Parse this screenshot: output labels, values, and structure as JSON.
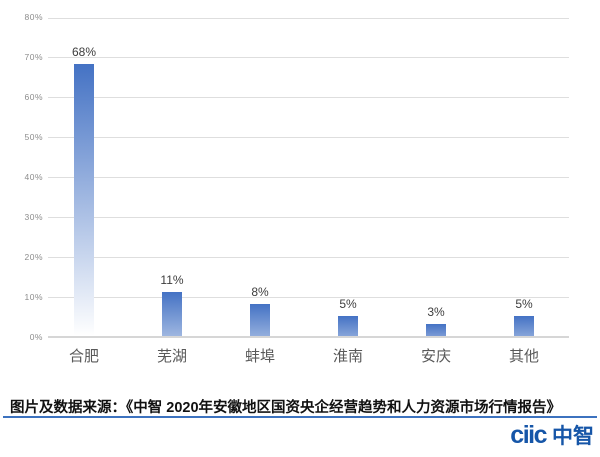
{
  "chart_data": {
    "type": "bar",
    "title": "",
    "xlabel": "",
    "ylabel": "",
    "categories": [
      "合肥",
      "芜湖",
      "蚌埠",
      "淮南",
      "安庆",
      "其他"
    ],
    "values": [
      68,
      11,
      8,
      5,
      3,
      5
    ],
    "data_labels": [
      "68%",
      "11%",
      "8%",
      "5%",
      "3%",
      "5%"
    ],
    "ylim": [
      0,
      80
    ],
    "ytick_step": 10,
    "ytick_labels": [
      "0%",
      "10%",
      "20%",
      "30%",
      "40%",
      "50%",
      "60%",
      "70%",
      "80%"
    ],
    "grid": true,
    "legend_position": "none",
    "bar_color": "#4472C4",
    "bar_fade_color": "#FFFFFF",
    "gridline_color": "#DEDEDE",
    "baseline_color": "#D6D6D6",
    "ytick_color": "#8C8C8C",
    "data_label_color": "#3D3D3D",
    "category_label_color": "#595959"
  },
  "footer": {
    "source_note": "图片及数据来源：《中智 2020年安徽地区国资央企经营趋势和人力资源市场行情报告》",
    "rule_color": "#3C72BF",
    "logo": {
      "latin": "ciic",
      "cjk": "中智",
      "color": "#1656A8"
    }
  }
}
